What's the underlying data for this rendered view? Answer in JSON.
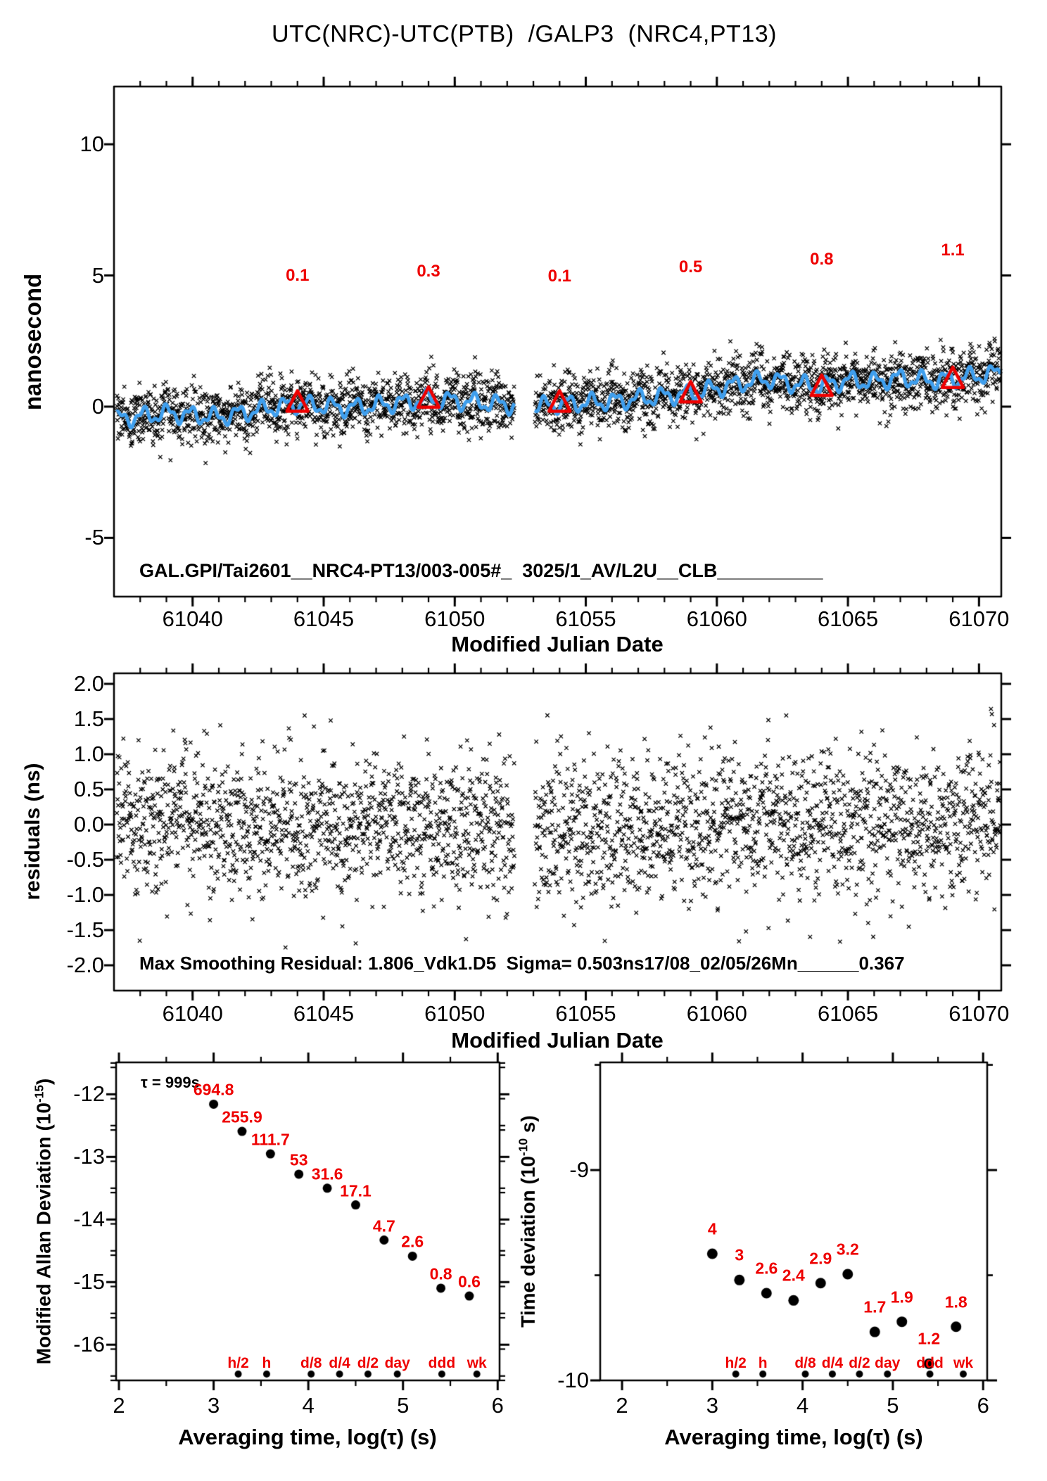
{
  "title": "UTC(NRC)-UTC(PTB)  /GALP3  (NRC4,PT13)",
  "colors": {
    "annotation_red": "#ee0000",
    "smooth_line_blue": "#3f9fee",
    "ink_black": "#000000",
    "background": "#ffffff"
  },
  "chart_data": [
    {
      "id": "utc_difference_panel",
      "type": "scatter",
      "marker": "x",
      "xlabel": "Modified Julian Date",
      "ylabel": "nanosecond",
      "xlim": [
        61037.0,
        61070.85
      ],
      "ylim": [
        -7.24,
        12.2
      ],
      "xticks": [
        61040,
        61045,
        61050,
        61055,
        61060,
        61065,
        61070
      ],
      "xtick_minor_step": 1,
      "yticks": [
        10,
        5,
        0,
        -5
      ],
      "footer": "GAL.GPI/Tai2601__NRC4-PT13/003-005#_  3025/1_AV/L2U__CLB__________",
      "data_gap_mjd": [
        61052.28,
        61053.05
      ],
      "five_day_offsets": [
        {
          "mjd": 61044,
          "ns": 0.15,
          "label": "0.1",
          "label_y": 5.0
        },
        {
          "mjd": 61049,
          "ns": 0.3,
          "label": "0.3",
          "label_y": 5.15
        },
        {
          "mjd": 61054,
          "ns": 0.15,
          "label": "0.1",
          "label_y": 4.95
        },
        {
          "mjd": 61059,
          "ns": 0.5,
          "label": "0.5",
          "label_y": 5.3
        },
        {
          "mjd": 61064,
          "ns": 0.75,
          "label": "0.8",
          "label_y": 5.6
        },
        {
          "mjd": 61069,
          "ns": 1.05,
          "label": "1.1",
          "label_y": 5.95
        }
      ],
      "scatter_model": {
        "seed": 1234,
        "step_days": 0.0105,
        "noise_sigma_ns": 0.55,
        "clip_ns": 1.9,
        "wiggle_amp_ns": 0.27,
        "wiggle_period_days": 0.9,
        "trend_anchors": [
          [
            61037.0,
            -0.5
          ],
          [
            61039.0,
            -0.25
          ],
          [
            61041.0,
            -0.4
          ],
          [
            61043.0,
            -0.05
          ],
          [
            61044.0,
            0.1
          ],
          [
            61046.0,
            -0.05
          ],
          [
            61048.0,
            0.15
          ],
          [
            61049.0,
            0.3
          ],
          [
            61051.0,
            0.15
          ],
          [
            61053.0,
            0.0
          ],
          [
            61054.0,
            0.1
          ],
          [
            61056.0,
            0.2
          ],
          [
            61058.0,
            0.4
          ],
          [
            61059.0,
            0.5
          ],
          [
            61061.0,
            0.9
          ],
          [
            61062.0,
            1.05
          ],
          [
            61063.0,
            0.85
          ],
          [
            61064.0,
            0.8
          ],
          [
            61065.0,
            1.0
          ],
          [
            61066.0,
            0.95
          ],
          [
            61067.0,
            1.1
          ],
          [
            61068.0,
            1.0
          ],
          [
            61069.0,
            1.05
          ],
          [
            61070.85,
            1.3
          ]
        ]
      }
    },
    {
      "id": "residuals_panel",
      "type": "scatter",
      "marker": "x",
      "xlabel": "Modified Julian Date",
      "ylabel": "residuals (ns)",
      "xlim": [
        61037.0,
        61070.85
      ],
      "ylim": [
        -2.36,
        2.15
      ],
      "xticks": [
        61040,
        61045,
        61050,
        61055,
        61060,
        61065,
        61070
      ],
      "xtick_minor_step": 1,
      "yticks": [
        2.0,
        1.5,
        1.0,
        0.5,
        0.0,
        -0.5,
        -1.0,
        -1.5,
        -2.0
      ],
      "footer": "Max Smoothing Residual: 1.806_Vdk1.D5  Sigma= 0.503ns17/08_02/05/26Mn______0.367",
      "data_gap_mjd": [
        61052.28,
        61053.05
      ],
      "scatter_model": {
        "seed": 777,
        "step_days": 0.0118,
        "sigma_ns": 0.52,
        "clip_ns": 1.76
      }
    },
    {
      "id": "modified_allan_deviation_panel",
      "type": "scatter",
      "marker": "dot",
      "xlabel": "Averaging time, log(τ) (s)",
      "ylabel_pre": "Modified Allan Deviation (10",
      "ylabel_sup": "-15",
      "ylabel_post": ")",
      "tau_note": "τ = 999s",
      "xlim": [
        1.97,
        6.02
      ],
      "ylim": [
        -16.57,
        -11.49
      ],
      "xticks": [
        2,
        3,
        4,
        5,
        6
      ],
      "xtick_minor_step": 0.5,
      "yticks": [
        -12,
        -13,
        -14,
        -15,
        -16
      ],
      "ytick_minor_step": 0.5,
      "points": {
        "log_tau": [
          3.0,
          3.3,
          3.6,
          3.9,
          4.2,
          4.5,
          4.8,
          5.1,
          5.4,
          5.7
        ],
        "values": [
          694.8,
          255.9,
          111.7,
          53.0,
          31.6,
          17.1,
          4.7,
          2.6,
          0.8,
          0.6
        ],
        "unit_exponent": -15
      },
      "time_tags": [
        {
          "label": "h/2",
          "log_tau": 3.26
        },
        {
          "label": "h",
          "log_tau": 3.56
        },
        {
          "label": "d/8",
          "log_tau": 4.03
        },
        {
          "label": "d/4",
          "log_tau": 4.33
        },
        {
          "label": "d/2",
          "log_tau": 4.63
        },
        {
          "label": "day",
          "log_tau": 4.94
        },
        {
          "label": "ddd",
          "log_tau": 5.41
        },
        {
          "label": "wk",
          "log_tau": 5.78
        }
      ]
    },
    {
      "id": "time_deviation_panel",
      "type": "scatter",
      "marker": "dot",
      "xlabel": "Averaging time, log(τ) (s)",
      "ylabel_pre": "Time deviation (10",
      "ylabel_sup": "-10",
      "ylabel_post": " s)",
      "xlim": [
        1.758,
        6.045
      ],
      "ylim": [
        -10.0,
        -8.488
      ],
      "xticks": [
        2,
        3,
        4,
        5,
        6
      ],
      "xtick_minor_step": 0.5,
      "yticks": [
        -9,
        -10
      ],
      "ytick_minor_step": 0.5,
      "points": {
        "log_tau": [
          3.0,
          3.3,
          3.6,
          3.9,
          4.2,
          4.5,
          4.8,
          5.1,
          5.4,
          5.7
        ],
        "values": [
          4.0,
          3.0,
          2.6,
          2.4,
          2.9,
          3.2,
          1.7,
          1.9,
          1.2,
          1.8
        ],
        "unit_exponent": -10
      },
      "time_tags": [
        {
          "label": "h/2",
          "log_tau": 3.26
        },
        {
          "label": "h",
          "log_tau": 3.56
        },
        {
          "label": "d/8",
          "log_tau": 4.03
        },
        {
          "label": "d/4",
          "log_tau": 4.33
        },
        {
          "label": "d/2",
          "log_tau": 4.63
        },
        {
          "label": "day",
          "log_tau": 4.94
        },
        {
          "label": "ddd",
          "log_tau": 5.41
        },
        {
          "label": "wk",
          "log_tau": 5.78
        }
      ]
    }
  ]
}
